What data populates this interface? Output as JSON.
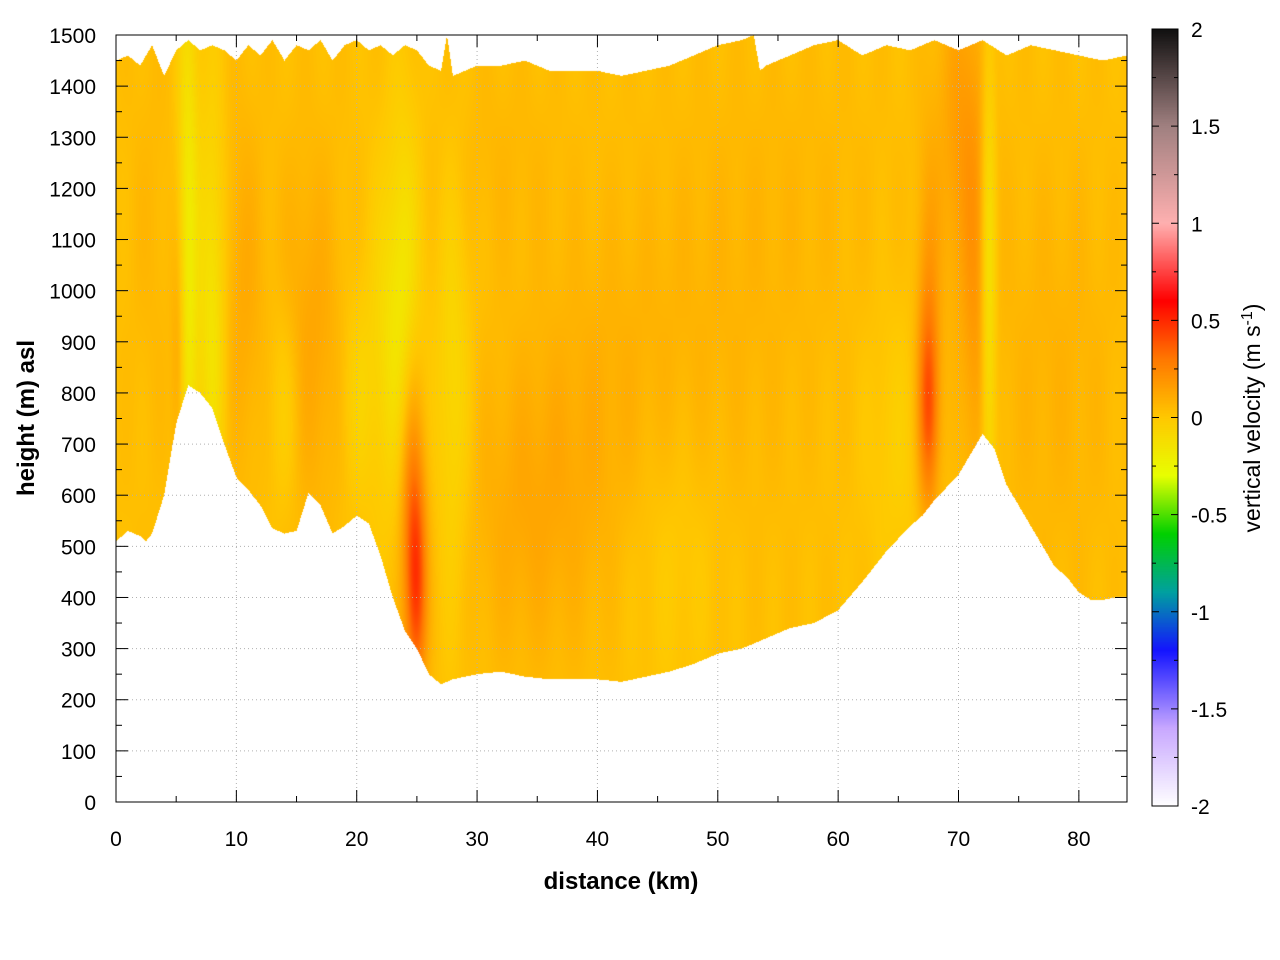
{
  "chart_data": {
    "type": "heatmap",
    "title": "",
    "xlabel": "distance (km)",
    "ylabel": "height (m) asl",
    "xlim": [
      0,
      84
    ],
    "ylim": [
      0,
      1500
    ],
    "x_ticks": [
      0,
      10,
      20,
      30,
      40,
      50,
      60,
      70,
      80
    ],
    "y_ticks": [
      0,
      100,
      200,
      300,
      400,
      500,
      600,
      700,
      800,
      900,
      1000,
      1100,
      1200,
      1300,
      1400,
      1500
    ],
    "grid": true,
    "colorbar": {
      "label_main": "vertical velocity (m s",
      "label_sup": "-1",
      "label_close": ")",
      "range": [
        -2,
        2
      ],
      "ticks": [
        "-2",
        "-1.5",
        "-1",
        "-0.5",
        "0",
        "0.5",
        "1",
        "1.5",
        "2"
      ],
      "stops": [
        {
          "v": -2.0,
          "color": "#ffffff"
        },
        {
          "v": -1.6,
          "color": "#c8a8ff"
        },
        {
          "v": -1.2,
          "color": "#1414ff"
        },
        {
          "v": -0.9,
          "color": "#00a0a0"
        },
        {
          "v": -0.6,
          "color": "#00d000"
        },
        {
          "v": -0.3,
          "color": "#e8ff00"
        },
        {
          "v": 0.0,
          "color": "#ffc800"
        },
        {
          "v": 0.3,
          "color": "#ff7800"
        },
        {
          "v": 0.6,
          "color": "#ff0000"
        },
        {
          "v": 1.0,
          "color": "#ffb0b0"
        },
        {
          "v": 1.5,
          "color": "#a08080"
        },
        {
          "v": 2.0,
          "color": "#101010"
        }
      ]
    },
    "field": {
      "background_value": 0.03,
      "bottom_boundary": {
        "x": [
          0,
          1,
          2,
          2.5,
          3,
          4,
          5,
          6,
          7,
          8,
          9,
          10,
          11,
          12,
          13,
          14,
          15,
          16,
          17,
          18,
          19,
          20,
          21,
          22,
          23,
          24,
          25,
          26,
          27,
          28,
          30,
          32,
          34,
          36,
          38,
          40,
          42,
          44,
          46,
          48,
          50,
          52,
          54,
          56,
          58,
          60,
          62,
          64,
          66,
          67,
          68,
          70,
          72,
          73,
          74,
          75,
          76,
          77,
          78,
          79,
          80,
          81,
          82,
          83,
          84
        ],
        "y": [
          510,
          530,
          520,
          510,
          525,
          600,
          740,
          815,
          800,
          770,
          700,
          635,
          610,
          580,
          535,
          525,
          530,
          605,
          580,
          525,
          540,
          560,
          545,
          480,
          400,
          335,
          300,
          250,
          230,
          240,
          250,
          255,
          245,
          240,
          240,
          240,
          235,
          245,
          255,
          270,
          290,
          300,
          320,
          340,
          350,
          375,
          430,
          490,
          540,
          560,
          590,
          640,
          720,
          690,
          620,
          580,
          540,
          500,
          460,
          440,
          410,
          395,
          395,
          400,
          400
        ]
      },
      "top_boundary": {
        "x": [
          0,
          1,
          2,
          3,
          4,
          5,
          6,
          7,
          8,
          9,
          10,
          11,
          12,
          13,
          14,
          15,
          16,
          17,
          18,
          19,
          20,
          21,
          22,
          23,
          24,
          25,
          26,
          27,
          27.5,
          28,
          30,
          32,
          34,
          36,
          38,
          40,
          42,
          44,
          46,
          48,
          50,
          52,
          53,
          53.5,
          54,
          56,
          58,
          60,
          62,
          64,
          66,
          68,
          70,
          72,
          74,
          76,
          78,
          80,
          82,
          84
        ],
        "y": [
          1450,
          1460,
          1440,
          1480,
          1420,
          1470,
          1490,
          1470,
          1480,
          1470,
          1450,
          1480,
          1460,
          1490,
          1450,
          1480,
          1470,
          1490,
          1450,
          1480,
          1490,
          1470,
          1480,
          1460,
          1480,
          1470,
          1440,
          1430,
          1500,
          1420,
          1440,
          1440,
          1450,
          1430,
          1430,
          1430,
          1420,
          1430,
          1440,
          1460,
          1480,
          1490,
          1500,
          1430,
          1440,
          1460,
          1480,
          1490,
          1460,
          1480,
          1470,
          1490,
          1470,
          1490,
          1460,
          1480,
          1470,
          1460,
          1450,
          1460
        ]
      },
      "features": [
        {
          "x": 6.0,
          "y": 1050,
          "sx": 0.6,
          "sy": 420,
          "v": -0.22
        },
        {
          "x": 8.0,
          "y": 950,
          "sx": 0.8,
          "sy": 300,
          "v": -0.18
        },
        {
          "x": 5.2,
          "y": 850,
          "sx": 0.4,
          "sy": 180,
          "v": 0.12
        },
        {
          "x": 10.5,
          "y": 1000,
          "sx": 1.2,
          "sy": 250,
          "v": 0.08
        },
        {
          "x": 16.0,
          "y": 900,
          "sx": 2.0,
          "sy": 250,
          "v": 0.1
        },
        {
          "x": 14.0,
          "y": 780,
          "sx": 1.0,
          "sy": 150,
          "v": -0.1
        },
        {
          "x": 20.0,
          "y": 800,
          "sx": 1.0,
          "sy": 150,
          "v": -0.08
        },
        {
          "x": 24.0,
          "y": 1000,
          "sx": 1.0,
          "sy": 250,
          "v": -0.16
        },
        {
          "x": 22.5,
          "y": 900,
          "sx": 1.2,
          "sy": 250,
          "v": -0.1
        },
        {
          "x": 25.0,
          "y": 420,
          "sx": 0.6,
          "sy": 150,
          "v": 0.35
        },
        {
          "x": 24.5,
          "y": 600,
          "sx": 0.7,
          "sy": 200,
          "v": 0.22
        },
        {
          "x": 28.0,
          "y": 800,
          "sx": 1.0,
          "sy": 300,
          "v": -0.12
        },
        {
          "x": 34.0,
          "y": 550,
          "sx": 3.5,
          "sy": 200,
          "v": 0.07
        },
        {
          "x": 40.0,
          "y": 720,
          "sx": 5.0,
          "sy": 250,
          "v": 0.06
        },
        {
          "x": 46.0,
          "y": 500,
          "sx": 3.0,
          "sy": 200,
          "v": -0.06
        },
        {
          "x": 50.0,
          "y": 950,
          "sx": 6.0,
          "sy": 300,
          "v": 0.04
        },
        {
          "x": 67.5,
          "y": 770,
          "sx": 0.6,
          "sy": 130,
          "v": 0.28
        },
        {
          "x": 67.5,
          "y": 900,
          "sx": 0.7,
          "sy": 250,
          "v": 0.15
        },
        {
          "x": 70.5,
          "y": 1300,
          "sx": 1.5,
          "sy": 250,
          "v": 0.14
        },
        {
          "x": 72.5,
          "y": 1000,
          "sx": 0.45,
          "sy": 380,
          "v": -0.22
        },
        {
          "x": 71.5,
          "y": 900,
          "sx": 0.8,
          "sy": 250,
          "v": 0.1
        },
        {
          "x": 65.0,
          "y": 700,
          "sx": 2.0,
          "sy": 200,
          "v": -0.06
        },
        {
          "x": 78.0,
          "y": 850,
          "sx": 4.0,
          "sy": 300,
          "v": 0.05
        },
        {
          "x": 3.0,
          "y": 1100,
          "sx": 1.5,
          "sy": 300,
          "v": 0.03
        },
        {
          "x": 32.0,
          "y": 1250,
          "sx": 4.0,
          "sy": 150,
          "v": 0.03
        },
        {
          "x": 58.0,
          "y": 1200,
          "sx": 5.0,
          "sy": 200,
          "v": 0.02
        }
      ]
    }
  }
}
